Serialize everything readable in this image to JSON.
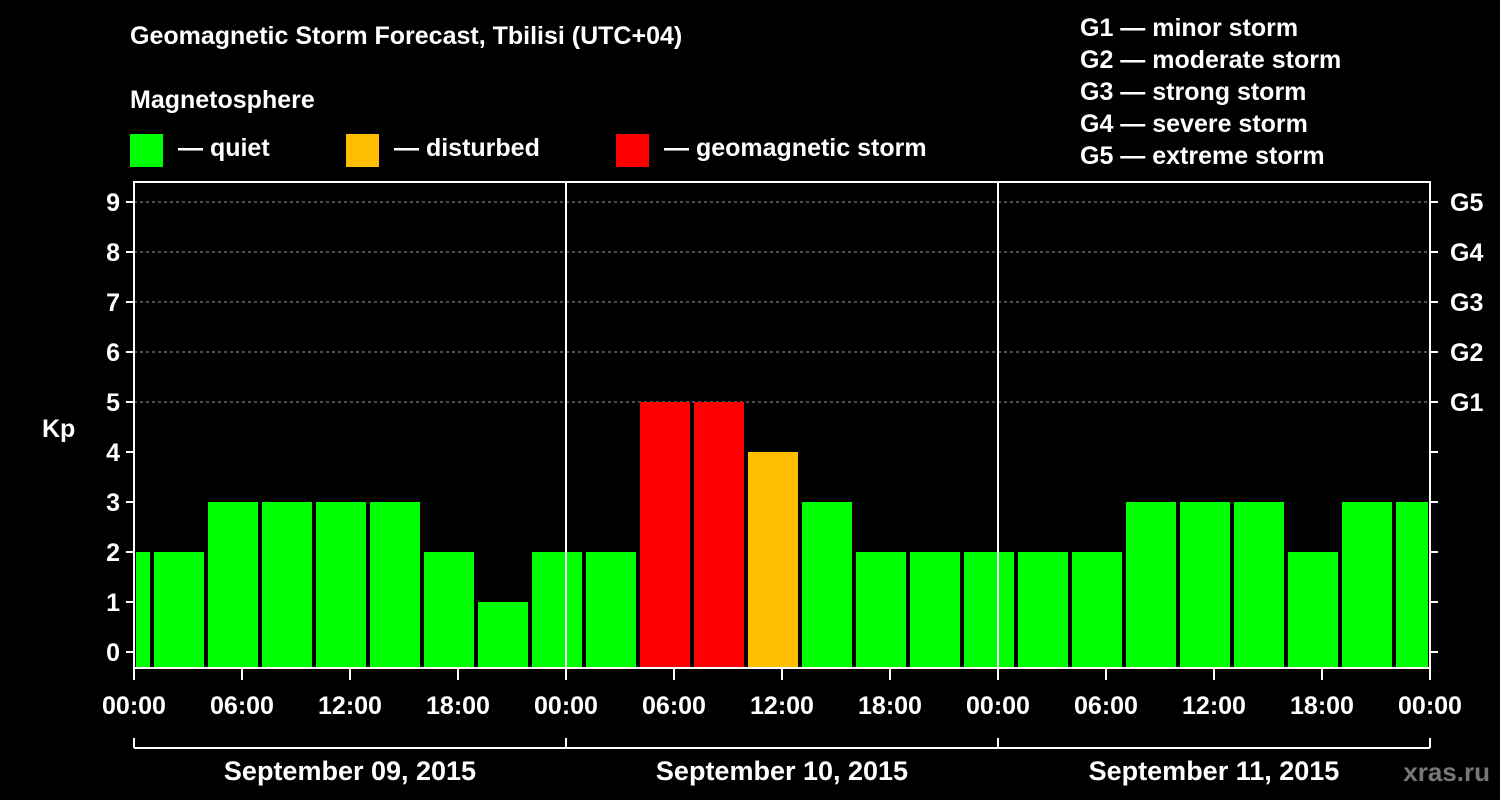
{
  "chart_data": {
    "type": "bar",
    "title": "Geomagnetic Storm Forecast, Tbilisi (UTC+04)",
    "ylabel": "Kp",
    "ylim": [
      0,
      9
    ],
    "yticks": [
      "0",
      "1",
      "2",
      "3",
      "4",
      "5",
      "6",
      "7",
      "8",
      "9"
    ],
    "right_axis": [
      {
        "kp": 5,
        "label": "G1"
      },
      {
        "kp": 6,
        "label": "G2"
      },
      {
        "kp": 7,
        "label": "G3"
      },
      {
        "kp": 8,
        "label": "G4"
      },
      {
        "kp": 9,
        "label": "G5"
      }
    ],
    "x_start_hour": 0,
    "x_end_hour": 72,
    "x_ticks": [
      {
        "hour": 0,
        "label": "00:00"
      },
      {
        "hour": 6,
        "label": "06:00"
      },
      {
        "hour": 12,
        "label": "12:00"
      },
      {
        "hour": 18,
        "label": "18:00"
      },
      {
        "hour": 24,
        "label": "00:00"
      },
      {
        "hour": 30,
        "label": "06:00"
      },
      {
        "hour": 36,
        "label": "12:00"
      },
      {
        "hour": 42,
        "label": "18:00"
      },
      {
        "hour": 48,
        "label": "00:00"
      },
      {
        "hour": 54,
        "label": "06:00"
      },
      {
        "hour": 60,
        "label": "12:00"
      },
      {
        "hour": 66,
        "label": "18:00"
      },
      {
        "hour": 72,
        "label": "00:00"
      }
    ],
    "days": [
      {
        "label": "September 09, 2015",
        "start_hour": 0,
        "end_hour": 24
      },
      {
        "label": "September 10, 2015",
        "start_hour": 24,
        "end_hour": 48
      },
      {
        "label": "September 11, 2015",
        "start_hour": 48,
        "end_hour": 72
      }
    ],
    "bars": [
      {
        "start_hour": 0,
        "end_hour": 1,
        "kp": 2
      },
      {
        "start_hour": 1,
        "end_hour": 4,
        "kp": 2
      },
      {
        "start_hour": 4,
        "end_hour": 7,
        "kp": 3
      },
      {
        "start_hour": 7,
        "end_hour": 10,
        "kp": 3
      },
      {
        "start_hour": 10,
        "end_hour": 13,
        "kp": 3
      },
      {
        "start_hour": 13,
        "end_hour": 16,
        "kp": 3
      },
      {
        "start_hour": 16,
        "end_hour": 19,
        "kp": 2
      },
      {
        "start_hour": 19,
        "end_hour": 22,
        "kp": 1
      },
      {
        "start_hour": 22,
        "end_hour": 25,
        "kp": 2
      },
      {
        "start_hour": 25,
        "end_hour": 28,
        "kp": 2
      },
      {
        "start_hour": 28,
        "end_hour": 31,
        "kp": 5
      },
      {
        "start_hour": 31,
        "end_hour": 34,
        "kp": 5
      },
      {
        "start_hour": 34,
        "end_hour": 37,
        "kp": 4
      },
      {
        "start_hour": 37,
        "end_hour": 40,
        "kp": 3
      },
      {
        "start_hour": 40,
        "end_hour": 43,
        "kp": 2
      },
      {
        "start_hour": 43,
        "end_hour": 46,
        "kp": 2
      },
      {
        "start_hour": 46,
        "end_hour": 49,
        "kp": 2
      },
      {
        "start_hour": 49,
        "end_hour": 52,
        "kp": 2
      },
      {
        "start_hour": 52,
        "end_hour": 55,
        "kp": 2
      },
      {
        "start_hour": 55,
        "end_hour": 58,
        "kp": 3
      },
      {
        "start_hour": 58,
        "end_hour": 61,
        "kp": 3
      },
      {
        "start_hour": 61,
        "end_hour": 64,
        "kp": 3
      },
      {
        "start_hour": 64,
        "end_hour": 67,
        "kp": 2
      },
      {
        "start_hour": 67,
        "end_hour": 70,
        "kp": 3
      },
      {
        "start_hour": 70,
        "end_hour": 72,
        "kp": 3
      }
    ],
    "colors": {
      "quiet": "#00ff00",
      "disturbed": "#ffbf00",
      "storm": "#ff0000"
    }
  },
  "legend": {
    "title": "Magnetosphere",
    "items": [
      {
        "label": "— quiet",
        "color": "#00ff00"
      },
      {
        "label": "— disturbed",
        "color": "#ffbf00"
      },
      {
        "label": "— geomagnetic storm",
        "color": "#ff0000"
      }
    ]
  },
  "storm_scale": [
    "G1 — minor storm",
    "G2 — moderate storm",
    "G3 — strong storm",
    "G4 — severe storm",
    "G5 — extreme storm"
  ],
  "watermark": "xras.ru"
}
